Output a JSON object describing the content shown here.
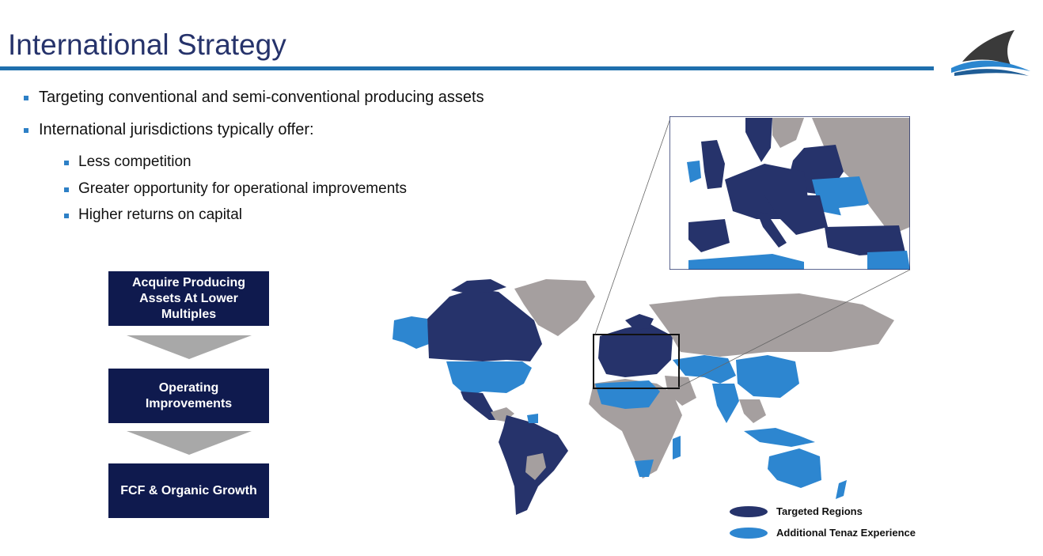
{
  "title": "International Strategy",
  "bullets": [
    {
      "text": "Targeting conventional and semi-conventional producing assets"
    },
    {
      "text": "International jurisdictions typically offer:",
      "sub": [
        "Less competition",
        "Greater opportunity for operational improvements",
        "Higher returns on capital"
      ]
    }
  ],
  "flow": [
    "Acquire Producing\nAssets At Lower\nMultiples",
    "Operating\nImprovements",
    "FCF & Organic Growth"
  ],
  "legend": [
    {
      "label": "Targeted Regions",
      "color": "#26336b"
    },
    {
      "label": "Additional Tenaz Experience",
      "color": "#2d86d0"
    }
  ],
  "colors": {
    "accent": "#1f6fad",
    "targeted": "#26336b",
    "experience": "#2d86d0",
    "other": "#a59f9f",
    "box": "#0f1a4e",
    "arrow": "#a8a8a8"
  },
  "icons": {
    "logo": "shark-fin-logo"
  }
}
